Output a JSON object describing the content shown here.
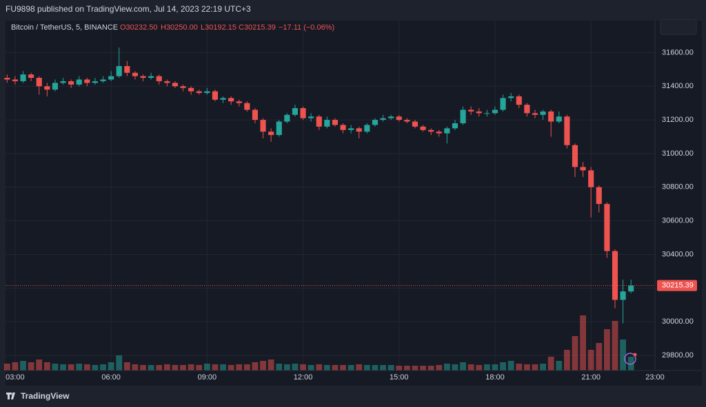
{
  "header": "FU9898 published on TradingView.com, Jul 14, 2023 22:19 UTC+3",
  "footer": "TradingView",
  "chart_data": {
    "type": "candlestick",
    "symbol": "Bitcoin / TetherUS, 5, BINANCE",
    "legend_ohlc": {
      "open": "O30232.50",
      "high": "H30250.00",
      "low": "L30192.15",
      "close": "C30215.39",
      "change": "−17.11 (−0.06%)"
    },
    "last_price": 30215.39,
    "up_color": "#26a69a",
    "down_color": "#ef5350",
    "grid": true,
    "xlim": [
      "02:42",
      "23:00"
    ],
    "xticks": [
      "03:00",
      "06:00",
      "09:00",
      "12:00",
      "15:00",
      "18:00",
      "21:00",
      "23:00"
    ],
    "ylim": [
      29710,
      31790
    ],
    "yticks": [
      {
        "value": 29800,
        "label": "29800.00"
      },
      {
        "value": 30000,
        "label": "30000.00"
      },
      {
        "value": 30200,
        "label": "30200.00"
      },
      {
        "value": 30400,
        "label": "30400.00"
      },
      {
        "value": 30600,
        "label": "30600.00"
      },
      {
        "value": 30800,
        "label": "30800.00"
      },
      {
        "value": 31000,
        "label": "31000.00"
      },
      {
        "value": 31200,
        "label": "31200.00"
      },
      {
        "value": 31400,
        "label": "31400.00"
      },
      {
        "value": 31600,
        "label": "31600.00"
      }
    ],
    "x": [
      "02:45",
      "03:00",
      "03:15",
      "03:30",
      "03:45",
      "04:00",
      "04:15",
      "04:30",
      "04:45",
      "05:00",
      "05:15",
      "05:30",
      "05:45",
      "06:00",
      "06:15",
      "06:30",
      "06:45",
      "07:00",
      "07:15",
      "07:30",
      "07:45",
      "08:00",
      "08:15",
      "08:30",
      "08:45",
      "09:00",
      "09:15",
      "09:30",
      "09:45",
      "10:00",
      "10:15",
      "10:30",
      "10:45",
      "11:00",
      "11:15",
      "11:30",
      "11:45",
      "12:00",
      "12:15",
      "12:30",
      "12:45",
      "13:00",
      "13:15",
      "13:30",
      "13:45",
      "14:00",
      "14:15",
      "14:30",
      "14:45",
      "15:00",
      "15:15",
      "15:30",
      "15:45",
      "16:00",
      "16:15",
      "16:30",
      "16:45",
      "17:00",
      "17:15",
      "17:30",
      "17:45",
      "18:00",
      "18:15",
      "18:30",
      "18:45",
      "19:00",
      "19:15",
      "19:30",
      "19:45",
      "20:00",
      "20:15",
      "20:30",
      "20:45",
      "21:00",
      "21:15",
      "21:30",
      "21:45",
      "22:00",
      "22:15"
    ],
    "open": [
      31450,
      31440,
      31430,
      31470,
      31450,
      31400,
      31380,
      31420,
      31430,
      31410,
      31440,
      31420,
      31430,
      31440,
      31460,
      31520,
      31480,
      31460,
      31450,
      31460,
      31430,
      31420,
      31400,
      31390,
      31370,
      31360,
      31370,
      31320,
      31330,
      31310,
      31300,
      31260,
      31200,
      31130,
      31110,
      31190,
      31230,
      31270,
      31210,
      31220,
      31160,
      31200,
      31170,
      31140,
      31150,
      31130,
      31170,
      31200,
      31210,
      31220,
      31200,
      31190,
      31160,
      31140,
      31130,
      31120,
      31150,
      31180,
      31260,
      31250,
      31240,
      31240,
      31260,
      31330,
      31340,
      31290,
      31240,
      31230,
      31250,
      31190,
      31220,
      31050,
      30920,
      30900,
      30800,
      30700,
      30420,
      30130,
      30180
    ],
    "high": [
      31470,
      31460,
      31490,
      31480,
      31460,
      31420,
      31440,
      31450,
      31440,
      31460,
      31450,
      31450,
      31460,
      31490,
      31630,
      31550,
      31490,
      31470,
      31480,
      31470,
      31440,
      31430,
      31410,
      31400,
      31380,
      31390,
      31380,
      31340,
      31340,
      31320,
      31310,
      31270,
      31210,
      31150,
      31200,
      31240,
      31290,
      31280,
      31240,
      31230,
      31220,
      31210,
      31180,
      31170,
      31160,
      31180,
      31210,
      31230,
      31230,
      31230,
      31210,
      31200,
      31170,
      31150,
      31140,
      31160,
      31200,
      31280,
      31280,
      31270,
      31260,
      31280,
      31350,
      31360,
      31350,
      31300,
      31260,
      31260,
      31260,
      31250,
      31230,
      31060,
      30950,
      30920,
      30810,
      30710,
      30430,
      30250,
      30250
    ],
    "low": [
      31420,
      31410,
      31420,
      31430,
      31350,
      31340,
      31370,
      31410,
      31390,
      31400,
      31400,
      31410,
      31420,
      31430,
      31450,
      31460,
      31440,
      31430,
      31440,
      31410,
      31400,
      31390,
      31370,
      31350,
      31350,
      31350,
      31310,
      31300,
      31290,
      31280,
      31250,
      31180,
      31090,
      31070,
      31100,
      31180,
      31220,
      31200,
      31190,
      31140,
      31150,
      31160,
      31120,
      31120,
      31090,
      31120,
      31160,
      31190,
      31200,
      31190,
      31180,
      31150,
      31130,
      31110,
      31100,
      31060,
      31140,
      31170,
      31230,
      31220,
      31220,
      31230,
      31250,
      31310,
      31270,
      31220,
      31210,
      31200,
      31100,
      31180,
      31030,
      30860,
      30860,
      30620,
      30650,
      30380,
      30080,
      29990,
      30170
    ],
    "close": [
      31440,
      31430,
      31470,
      31450,
      31400,
      31380,
      31420,
      31430,
      31410,
      31440,
      31420,
      31430,
      31440,
      31460,
      31520,
      31480,
      31460,
      31450,
      31460,
      31430,
      31420,
      31400,
      31390,
      31370,
      31360,
      31370,
      31320,
      31330,
      31310,
      31300,
      31260,
      31200,
      31130,
      31110,
      31190,
      31230,
      31270,
      31210,
      31220,
      31160,
      31200,
      31170,
      31140,
      31150,
      31130,
      31170,
      31200,
      31210,
      31220,
      31200,
      31190,
      31160,
      31140,
      31130,
      31120,
      31150,
      31180,
      31260,
      31250,
      31240,
      31240,
      31260,
      31330,
      31340,
      31290,
      31240,
      31230,
      31250,
      31190,
      31220,
      31050,
      30920,
      30900,
      30800,
      30700,
      30420,
      30130,
      30180,
      30215.39
    ],
    "volume": [
      10,
      12,
      14,
      12,
      16,
      12,
      10,
      9,
      9,
      10,
      9,
      8,
      9,
      12,
      22,
      12,
      9,
      8,
      8,
      8,
      9,
      8,
      8,
      9,
      8,
      10,
      9,
      9,
      8,
      9,
      9,
      12,
      14,
      16,
      10,
      9,
      10,
      9,
      8,
      9,
      8,
      8,
      8,
      8,
      9,
      8,
      8,
      8,
      8,
      7,
      7,
      7,
      7,
      7,
      8,
      10,
      9,
      12,
      9,
      8,
      9,
      9,
      12,
      14,
      10,
      9,
      9,
      10,
      20,
      14,
      30,
      50,
      80,
      30,
      40,
      60,
      72,
      45,
      20
    ],
    "volume_lim": [
      0,
      100
    ]
  }
}
